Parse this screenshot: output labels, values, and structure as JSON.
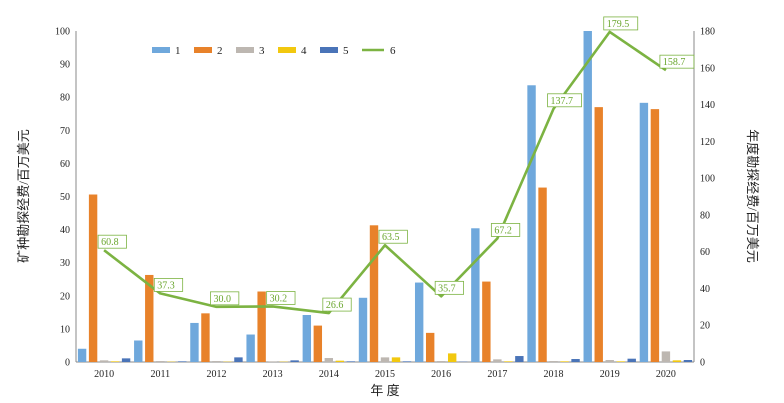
{
  "chart_data": {
    "type": "bar",
    "categories": [
      "2010",
      "2011",
      "2012",
      "2013",
      "2014",
      "2015",
      "2016",
      "2017",
      "2018",
      "2019",
      "2020"
    ],
    "xlabel": "年 度",
    "ylabel": "矿种勘探经费/百万美元",
    "ylabel_right": "年度勘探经费/百万美元",
    "ylim": [
      0,
      100
    ],
    "ylim_right": [
      0,
      180
    ],
    "yticks": [
      0,
      10,
      20,
      30,
      40,
      50,
      60,
      70,
      80,
      90,
      100
    ],
    "yticks_right": [
      0,
      20,
      40,
      60,
      80,
      100,
      120,
      140,
      160,
      180
    ],
    "legend_position": "top",
    "series": [
      {
        "name": "1",
        "color": "#6fa8dc",
        "axis": "left",
        "values": [
          4.0,
          6.5,
          11.8,
          8.3,
          14.2,
          19.4,
          24.0,
          40.4,
          83.6,
          100.0,
          78.3
        ]
      },
      {
        "name": "2",
        "color": "#e8822a",
        "axis": "left",
        "values": [
          50.6,
          26.3,
          14.7,
          21.3,
          11.0,
          41.3,
          8.8,
          24.3,
          52.7,
          77.0,
          76.4
        ]
      },
      {
        "name": "3",
        "color": "#bdb7b1",
        "axis": "left",
        "values": [
          0.5,
          0.3,
          0.3,
          0.2,
          1.2,
          1.4,
          0.3,
          0.8,
          0.3,
          0.6,
          3.2
        ]
      },
      {
        "name": "4",
        "color": "#f2c80f",
        "axis": "left",
        "values": [
          0.2,
          0.1,
          0.1,
          0.1,
          0.4,
          1.4,
          2.6,
          0.2,
          0.2,
          0.2,
          0.5
        ]
      },
      {
        "name": "5",
        "color": "#4a74b8",
        "axis": "left",
        "values": [
          1.1,
          0.2,
          1.4,
          0.5,
          0.2,
          0.2,
          0.1,
          1.8,
          0.9,
          1.0,
          0.6
        ]
      },
      {
        "name": "6",
        "color": "#7cb342",
        "axis": "right",
        "type": "line",
        "values": [
          60.8,
          37.3,
          30.0,
          30.2,
          26.6,
          63.5,
          35.7,
          67.2,
          137.7,
          179.5,
          158.7
        ],
        "labels": [
          "60.8",
          "37.3",
          "30.0",
          "30.2",
          "26.6",
          "63.5",
          "35.7",
          "67.2",
          "137.7",
          "179.5",
          "158.7"
        ]
      }
    ]
  }
}
